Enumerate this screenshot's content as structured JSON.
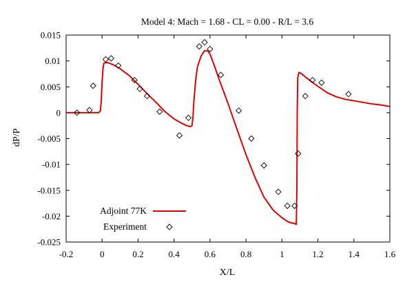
{
  "chart_data": {
    "type": "line",
    "title": "Model 4: Mach = 1.68 - CL = 0.00 - R/L = 3.6",
    "xlabel": "X/L",
    "ylabel": "dP/P",
    "xlim": [
      -0.2,
      1.6
    ],
    "ylim": [
      -0.025,
      0.015
    ],
    "xticks": [
      -0.2,
      0,
      0.2,
      0.4,
      0.6,
      0.8,
      1,
      1.2,
      1.4,
      1.6
    ],
    "xtick_labels": [
      "-0.2",
      "0",
      "0.2",
      "0.4",
      "0.6",
      "0.8",
      "1",
      "1.2",
      "1.4",
      "1.6"
    ],
    "yticks": [
      -0.025,
      -0.02,
      -0.015,
      -0.01,
      -0.005,
      0,
      0.005,
      0.01,
      0.015
    ],
    "ytick_labels": [
      "-0.025",
      "-0.02",
      "-0.015",
      "-0.01",
      "-0.005",
      "0",
      "0.005",
      "0.01",
      "0.015"
    ],
    "grid": false,
    "legend_position": "bottom-left",
    "series": [
      {
        "name": "Adjoint  77K",
        "style": "line",
        "color": "#e00000",
        "x": [
          -0.2,
          -0.05,
          -0.02,
          -0.01,
          -0.005,
          0,
          0.005,
          0.01,
          0.03,
          0.06,
          0.1,
          0.15,
          0.2,
          0.25,
          0.3,
          0.35,
          0.4,
          0.44,
          0.47,
          0.49,
          0.5,
          0.505,
          0.51,
          0.52,
          0.53,
          0.55,
          0.57,
          0.59,
          0.6,
          0.62,
          0.65,
          0.7,
          0.75,
          0.8,
          0.85,
          0.9,
          0.95,
          1.0,
          1.03,
          1.05,
          1.07,
          1.08,
          1.083,
          1.085,
          1.088,
          1.095,
          1.11,
          1.13,
          1.16,
          1.2,
          1.25,
          1.3,
          1.35,
          1.4,
          1.45,
          1.5,
          1.55,
          1.6
        ],
        "y": [
          0.0,
          0.0,
          0.0,
          0.0003,
          0.002,
          0.006,
          0.0085,
          0.0096,
          0.0097,
          0.0093,
          0.0085,
          0.0072,
          0.0055,
          0.0037,
          0.002,
          0.0002,
          -0.0012,
          -0.002,
          -0.0025,
          -0.0027,
          -0.0025,
          -0.001,
          0.002,
          0.0062,
          0.0088,
          0.0109,
          0.012,
          0.0119,
          0.0113,
          0.0095,
          0.0065,
          0.0018,
          -0.0032,
          -0.0081,
          -0.0125,
          -0.0163,
          -0.0188,
          -0.0203,
          -0.021,
          -0.0213,
          -0.0214,
          -0.0216,
          -0.015,
          0.0,
          0.0068,
          0.0078,
          0.0075,
          0.0069,
          0.0061,
          0.0051,
          0.0039,
          0.0031,
          0.0026,
          0.0023,
          0.002,
          0.0017,
          0.0015,
          0.0012
        ]
      },
      {
        "name": "Experiment",
        "style": "marker",
        "marker": "diamond",
        "color": "#000000",
        "x": [
          -0.14,
          -0.07,
          -0.05,
          0.02,
          0.05,
          0.09,
          0.18,
          0.21,
          0.25,
          0.32,
          0.43,
          0.48,
          0.54,
          0.57,
          0.6,
          0.66,
          0.76,
          0.83,
          0.9,
          0.98,
          1.03,
          1.07,
          1.09,
          1.13,
          1.17,
          1.22,
          1.37
        ],
        "y": [
          0.0,
          0.0005,
          0.0052,
          0.0103,
          0.0105,
          0.0091,
          0.0063,
          0.0046,
          0.0032,
          0.0002,
          -0.0044,
          -0.001,
          0.0128,
          0.0136,
          0.0123,
          0.0073,
          0.0004,
          -0.005,
          -0.0102,
          -0.0153,
          -0.018,
          -0.018,
          -0.0079,
          0.0032,
          0.0063,
          0.0058,
          0.0036
        ]
      }
    ]
  }
}
